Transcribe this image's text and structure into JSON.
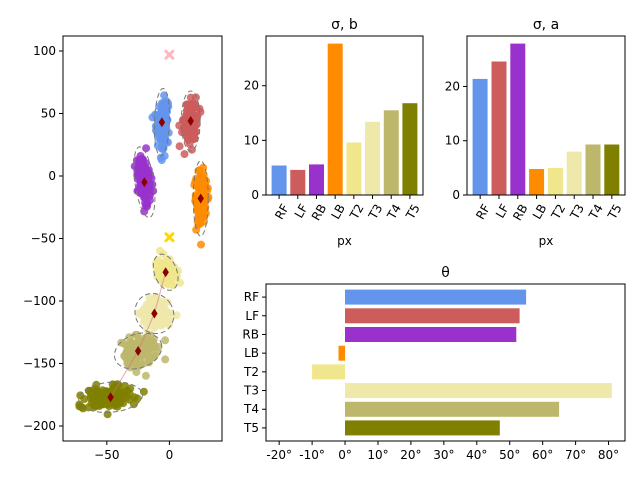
{
  "chart_data": [
    {
      "type": "scatter",
      "title": "",
      "xlabel": "",
      "ylabel": "",
      "xlim": [
        -85,
        42
      ],
      "ylim": [
        -212,
        112
      ],
      "xticks": [
        -50,
        0
      ],
      "yticks": [
        100,
        50,
        0,
        -50,
        -100,
        -150,
        -200
      ],
      "xtick_labels": [
        "−50",
        "0"
      ],
      "ytick_labels": [
        "100",
        "50",
        "0",
        "−50",
        "−100",
        "−150",
        "−200"
      ],
      "clusters": [
        {
          "name": "RF",
          "color": "#6495ED",
          "center": [
            -6,
            43
          ],
          "sx": 4,
          "sy": 18,
          "angle": -2,
          "spread": 1.0
        },
        {
          "name": "LF",
          "color": "#CD5C5C",
          "center": [
            17,
            44
          ],
          "sx": 5,
          "sy": 16,
          "angle": 0,
          "spread": 1.0
        },
        {
          "name": "RB",
          "color": "#9932CC",
          "center": [
            -20,
            -5
          ],
          "sx": 5,
          "sy": 19,
          "angle": 8,
          "spread": 1.0
        },
        {
          "name": "LB",
          "color": "#FF8C00",
          "center": [
            25,
            -18
          ],
          "sx": 4,
          "sy": 20,
          "angle": 0,
          "spread": 1.0
        },
        {
          "name": "T2",
          "color": "#F0E68C",
          "center": [
            -3,
            -77
          ],
          "sx": 6,
          "sy": 10,
          "angle": 20,
          "spread": 1.0
        },
        {
          "name": "T3",
          "color": "#EEE8AA",
          "center": [
            -12,
            -110
          ],
          "sx": 10,
          "sy": 11,
          "angle": 35,
          "spread": 1.0
        },
        {
          "name": "T4",
          "color": "#BDB76B",
          "center": [
            -25,
            -140
          ],
          "sx": 13,
          "sy": 9,
          "angle": 20,
          "spread": 1.0
        },
        {
          "name": "T5",
          "color": "#808000",
          "center": [
            -47,
            -177
          ],
          "sx": 17,
          "sy": 8,
          "angle": 5,
          "spread": 1.0
        }
      ],
      "markers": [
        {
          "type": "x",
          "color": "#FFB6C1",
          "x": 0,
          "y": 97
        },
        {
          "type": "x",
          "color": "#FFD700",
          "x": 0,
          "y": -49
        }
      ],
      "ellipse_style": "dashed-gray"
    },
    {
      "type": "bar",
      "title": "σ, b",
      "xlabel": "px",
      "ylabel": "",
      "categories": [
        "RF",
        "LF",
        "RB",
        "LB",
        "T2",
        "T3",
        "T4",
        "T5"
      ],
      "values": [
        5.4,
        4.6,
        5.6,
        27.7,
        9.6,
        13.4,
        15.5,
        16.8
      ],
      "colors": [
        "#6495ED",
        "#CD5C5C",
        "#9932CC",
        "#FF8C00",
        "#F0E68C",
        "#EEE8AA",
        "#BDB76B",
        "#808000"
      ],
      "ylim": [
        0,
        29.1
      ],
      "yticks": [
        0,
        10,
        20
      ],
      "ytick_labels": [
        "0",
        "10",
        "20"
      ]
    },
    {
      "type": "bar",
      "title": "σ, a",
      "xlabel": "px",
      "ylabel": "",
      "categories": [
        "RF",
        "LF",
        "RB",
        "LB",
        "T2",
        "T3",
        "T4",
        "T5"
      ],
      "values": [
        21.4,
        24.6,
        27.9,
        4.8,
        5.0,
        8.0,
        9.3,
        9.3
      ],
      "colors": [
        "#6495ED",
        "#CD5C5C",
        "#9932CC",
        "#FF8C00",
        "#F0E68C",
        "#EEE8AA",
        "#BDB76B",
        "#808000"
      ],
      "ylim": [
        0,
        29.3
      ],
      "yticks": [
        0,
        10,
        20
      ],
      "ytick_labels": [
        "0",
        "10",
        "20"
      ]
    },
    {
      "type": "bar",
      "orientation": "horizontal",
      "title": "θ",
      "xlabel": "",
      "ylabel": "",
      "categories": [
        "RF",
        "LF",
        "RB",
        "LB",
        "T2",
        "T3",
        "T4",
        "T5"
      ],
      "values": [
        55,
        53,
        52,
        -2,
        -10,
        81,
        65,
        47
      ],
      "colors": [
        "#6495ED",
        "#CD5C5C",
        "#9932CC",
        "#FF8C00",
        "#F0E68C",
        "#EEE8AA",
        "#BDB76B",
        "#808000"
      ],
      "xlim": [
        -24,
        85
      ],
      "xticks": [
        -20,
        -10,
        0,
        10,
        20,
        30,
        40,
        50,
        60,
        70,
        80
      ],
      "xtick_labels": [
        "-20°",
        "-10°",
        "0°",
        "10°",
        "20°",
        "30°",
        "40°",
        "50°",
        "60°",
        "70°",
        "80°"
      ]
    }
  ]
}
